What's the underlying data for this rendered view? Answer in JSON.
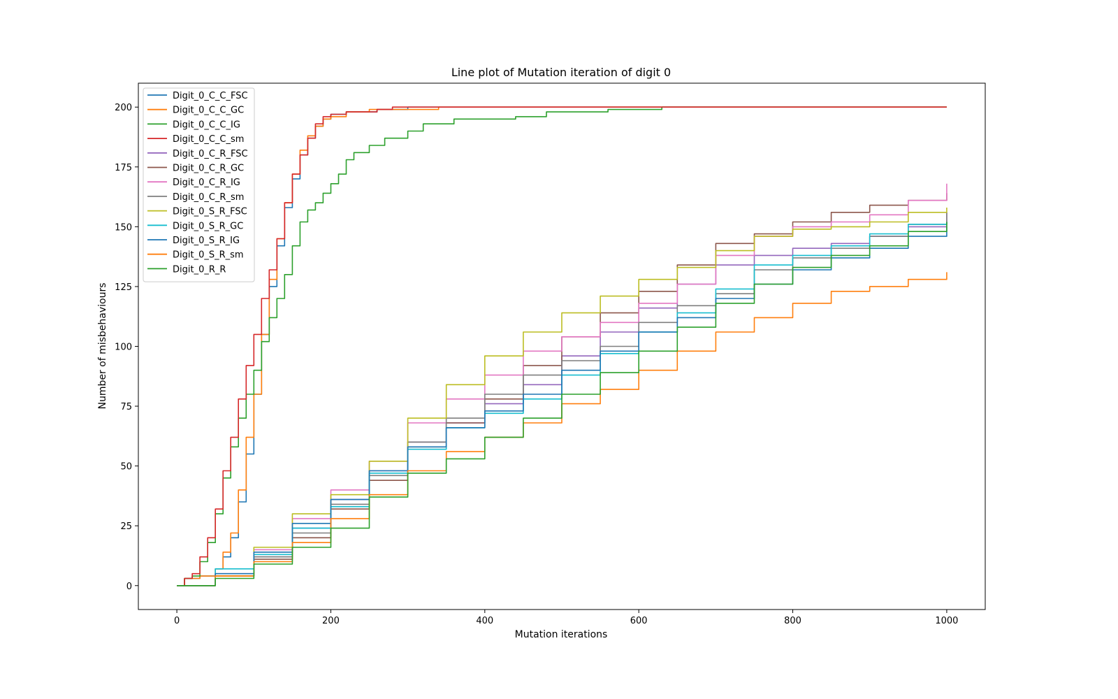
{
  "chart_data": {
    "type": "line",
    "title": "Line plot of Mutation iteration of digit 0",
    "xlabel": "Mutation iterations",
    "ylabel": "Number of misbehaviours",
    "xlim": [
      -50,
      1050
    ],
    "ylim": [
      -10,
      210
    ],
    "xticks": [
      0,
      200,
      400,
      600,
      800,
      1000
    ],
    "yticks": [
      0,
      25,
      50,
      75,
      100,
      125,
      150,
      175,
      200
    ],
    "grid": false,
    "legend_position": "top-left",
    "series": [
      {
        "name": "Digit_0_C_C_FSC",
        "color": "#1f77b4",
        "points": [
          [
            0,
            0
          ],
          [
            10,
            3
          ],
          [
            30,
            4
          ],
          [
            50,
            7
          ],
          [
            60,
            12
          ],
          [
            70,
            20
          ],
          [
            80,
            35
          ],
          [
            90,
            55
          ],
          [
            100,
            80
          ],
          [
            110,
            105
          ],
          [
            120,
            125
          ],
          [
            130,
            142
          ],
          [
            140,
            158
          ],
          [
            150,
            170
          ],
          [
            160,
            180
          ],
          [
            170,
            187
          ],
          [
            180,
            192
          ],
          [
            190,
            195
          ],
          [
            200,
            197
          ],
          [
            220,
            198
          ],
          [
            260,
            199
          ],
          [
            300,
            200
          ],
          [
            1000,
            200
          ]
        ]
      },
      {
        "name": "Digit_0_C_C_GC",
        "color": "#ff7f0e",
        "points": [
          [
            0,
            0
          ],
          [
            10,
            3
          ],
          [
            30,
            4
          ],
          [
            50,
            7
          ],
          [
            60,
            14
          ],
          [
            70,
            22
          ],
          [
            80,
            40
          ],
          [
            90,
            62
          ],
          [
            100,
            80
          ],
          [
            110,
            105
          ],
          [
            120,
            128
          ],
          [
            130,
            145
          ],
          [
            140,
            160
          ],
          [
            150,
            172
          ],
          [
            160,
            182
          ],
          [
            170,
            188
          ],
          [
            180,
            192
          ],
          [
            190,
            195
          ],
          [
            200,
            196
          ],
          [
            220,
            198
          ],
          [
            250,
            199
          ],
          [
            340,
            200
          ],
          [
            1000,
            200
          ]
        ]
      },
      {
        "name": "Digit_0_C_C_IG",
        "color": "#2ca02c",
        "points": [
          [
            0,
            0
          ],
          [
            10,
            3
          ],
          [
            20,
            4
          ],
          [
            30,
            10
          ],
          [
            40,
            18
          ],
          [
            50,
            30
          ],
          [
            60,
            45
          ],
          [
            70,
            58
          ],
          [
            80,
            70
          ],
          [
            90,
            80
          ],
          [
            100,
            90
          ],
          [
            110,
            102
          ],
          [
            120,
            112
          ],
          [
            130,
            120
          ],
          [
            140,
            130
          ],
          [
            150,
            142
          ],
          [
            160,
            152
          ],
          [
            170,
            157
          ],
          [
            180,
            160
          ],
          [
            190,
            164
          ],
          [
            200,
            168
          ],
          [
            210,
            172
          ],
          [
            220,
            178
          ],
          [
            230,
            181
          ],
          [
            250,
            184
          ],
          [
            270,
            187
          ],
          [
            300,
            190
          ],
          [
            320,
            193
          ],
          [
            360,
            195
          ],
          [
            440,
            196
          ],
          [
            480,
            198
          ],
          [
            560,
            199
          ],
          [
            630,
            200
          ],
          [
            1000,
            200
          ]
        ]
      },
      {
        "name": "Digit_0_C_C_sm",
        "color": "#d62728",
        "points": [
          [
            0,
            0
          ],
          [
            10,
            3
          ],
          [
            20,
            5
          ],
          [
            30,
            12
          ],
          [
            40,
            20
          ],
          [
            50,
            32
          ],
          [
            60,
            48
          ],
          [
            70,
            62
          ],
          [
            80,
            78
          ],
          [
            90,
            92
          ],
          [
            100,
            105
          ],
          [
            110,
            120
          ],
          [
            120,
            132
          ],
          [
            130,
            145
          ],
          [
            140,
            160
          ],
          [
            150,
            172
          ],
          [
            160,
            180
          ],
          [
            170,
            187
          ],
          [
            180,
            193
          ],
          [
            190,
            196
          ],
          [
            200,
            197
          ],
          [
            220,
            198
          ],
          [
            260,
            199
          ],
          [
            280,
            200
          ],
          [
            1000,
            200
          ]
        ]
      },
      {
        "name": "Digit_0_C_R_FSC",
        "color": "#9467bd",
        "points": [
          [
            0,
            0
          ],
          [
            50,
            4
          ],
          [
            100,
            12
          ],
          [
            150,
            24
          ],
          [
            200,
            36
          ],
          [
            250,
            48
          ],
          [
            300,
            60
          ],
          [
            350,
            68
          ],
          [
            400,
            76
          ],
          [
            450,
            84
          ],
          [
            500,
            96
          ],
          [
            550,
            106
          ],
          [
            600,
            116
          ],
          [
            650,
            126
          ],
          [
            700,
            134
          ],
          [
            750,
            138
          ],
          [
            800,
            141
          ],
          [
            850,
            143
          ],
          [
            900,
            146
          ],
          [
            950,
            150
          ],
          [
            1000,
            156
          ]
        ]
      },
      {
        "name": "Digit_0_C_R_GC",
        "color": "#8c564b",
        "points": [
          [
            0,
            0
          ],
          [
            50,
            4
          ],
          [
            100,
            11
          ],
          [
            150,
            20
          ],
          [
            200,
            32
          ],
          [
            250,
            44
          ],
          [
            300,
            58
          ],
          [
            350,
            68
          ],
          [
            400,
            78
          ],
          [
            450,
            92
          ],
          [
            500,
            104
          ],
          [
            550,
            114
          ],
          [
            600,
            123
          ],
          [
            650,
            134
          ],
          [
            700,
            143
          ],
          [
            750,
            147
          ],
          [
            800,
            152
          ],
          [
            850,
            156
          ],
          [
            900,
            159
          ],
          [
            950,
            161
          ],
          [
            1000,
            164
          ]
        ]
      },
      {
        "name": "Digit_0_C_R_IG",
        "color": "#e377c2",
        "points": [
          [
            0,
            0
          ],
          [
            50,
            5
          ],
          [
            100,
            15
          ],
          [
            150,
            28
          ],
          [
            200,
            40
          ],
          [
            250,
            52
          ],
          [
            300,
            68
          ],
          [
            350,
            78
          ],
          [
            400,
            88
          ],
          [
            450,
            98
          ],
          [
            500,
            104
          ],
          [
            550,
            110
          ],
          [
            600,
            118
          ],
          [
            650,
            126
          ],
          [
            700,
            138
          ],
          [
            750,
            146
          ],
          [
            800,
            150
          ],
          [
            850,
            152
          ],
          [
            900,
            155
          ],
          [
            950,
            161
          ],
          [
            1000,
            168
          ]
        ]
      },
      {
        "name": "Digit_0_C_R_sm",
        "color": "#7f7f7f",
        "points": [
          [
            0,
            0
          ],
          [
            50,
            4
          ],
          [
            100,
            12
          ],
          [
            150,
            22
          ],
          [
            200,
            34
          ],
          [
            250,
            46
          ],
          [
            300,
            60
          ],
          [
            350,
            70
          ],
          [
            400,
            80
          ],
          [
            450,
            88
          ],
          [
            500,
            94
          ],
          [
            550,
            100
          ],
          [
            600,
            110
          ],
          [
            650,
            117
          ],
          [
            700,
            122
          ],
          [
            750,
            132
          ],
          [
            800,
            137
          ],
          [
            850,
            141
          ],
          [
            900,
            146
          ],
          [
            950,
            151
          ],
          [
            1000,
            156
          ]
        ]
      },
      {
        "name": "Digit_0_S_R_FSC",
        "color": "#bcbd22",
        "points": [
          [
            0,
            0
          ],
          [
            50,
            4
          ],
          [
            100,
            16
          ],
          [
            150,
            30
          ],
          [
            200,
            38
          ],
          [
            250,
            52
          ],
          [
            300,
            70
          ],
          [
            350,
            84
          ],
          [
            400,
            96
          ],
          [
            450,
            106
          ],
          [
            500,
            114
          ],
          [
            550,
            121
          ],
          [
            600,
            128
          ],
          [
            650,
            133
          ],
          [
            700,
            140
          ],
          [
            750,
            146
          ],
          [
            800,
            149
          ],
          [
            850,
            150
          ],
          [
            900,
            152
          ],
          [
            950,
            156
          ],
          [
            1000,
            158
          ]
        ]
      },
      {
        "name": "Digit_0_S_R_GC",
        "color": "#17becf",
        "points": [
          [
            0,
            0
          ],
          [
            50,
            7
          ],
          [
            100,
            13
          ],
          [
            150,
            24
          ],
          [
            200,
            33
          ],
          [
            250,
            47
          ],
          [
            300,
            57
          ],
          [
            350,
            66
          ],
          [
            400,
            72
          ],
          [
            450,
            78
          ],
          [
            500,
            88
          ],
          [
            550,
            97
          ],
          [
            600,
            106
          ],
          [
            650,
            114
          ],
          [
            700,
            124
          ],
          [
            750,
            134
          ],
          [
            800,
            138
          ],
          [
            850,
            142
          ],
          [
            900,
            147
          ],
          [
            950,
            151
          ],
          [
            1000,
            152
          ]
        ]
      },
      {
        "name": "Digit_0_S_R_IG",
        "color": "#1f77b4",
        "points": [
          [
            0,
            0
          ],
          [
            50,
            5
          ],
          [
            100,
            14
          ],
          [
            150,
            26
          ],
          [
            200,
            36
          ],
          [
            250,
            48
          ],
          [
            300,
            58
          ],
          [
            350,
            66
          ],
          [
            400,
            73
          ],
          [
            450,
            80
          ],
          [
            500,
            90
          ],
          [
            550,
            98
          ],
          [
            600,
            106
          ],
          [
            650,
            112
          ],
          [
            700,
            120
          ],
          [
            750,
            126
          ],
          [
            800,
            132
          ],
          [
            850,
            137
          ],
          [
            900,
            141
          ],
          [
            950,
            146
          ],
          [
            1000,
            150
          ]
        ]
      },
      {
        "name": "Digit_0_S_R_sm",
        "color": "#ff7f0e",
        "points": [
          [
            0,
            0
          ],
          [
            50,
            4
          ],
          [
            100,
            10
          ],
          [
            150,
            18
          ],
          [
            200,
            28
          ],
          [
            250,
            38
          ],
          [
            300,
            48
          ],
          [
            350,
            56
          ],
          [
            400,
            62
          ],
          [
            450,
            68
          ],
          [
            500,
            76
          ],
          [
            550,
            82
          ],
          [
            600,
            90
          ],
          [
            650,
            98
          ],
          [
            700,
            106
          ],
          [
            750,
            112
          ],
          [
            800,
            118
          ],
          [
            850,
            123
          ],
          [
            900,
            125
          ],
          [
            950,
            128
          ],
          [
            1000,
            131
          ]
        ]
      },
      {
        "name": "Digit_0_R_R",
        "color": "#2ca02c",
        "points": [
          [
            0,
            0
          ],
          [
            50,
            3
          ],
          [
            100,
            9
          ],
          [
            150,
            16
          ],
          [
            200,
            24
          ],
          [
            250,
            37
          ],
          [
            300,
            47
          ],
          [
            350,
            53
          ],
          [
            400,
            62
          ],
          [
            450,
            70
          ],
          [
            500,
            80
          ],
          [
            550,
            89
          ],
          [
            600,
            98
          ],
          [
            650,
            108
          ],
          [
            700,
            118
          ],
          [
            750,
            126
          ],
          [
            800,
            133
          ],
          [
            850,
            138
          ],
          [
            900,
            142
          ],
          [
            950,
            148
          ],
          [
            1000,
            152
          ]
        ]
      }
    ]
  }
}
